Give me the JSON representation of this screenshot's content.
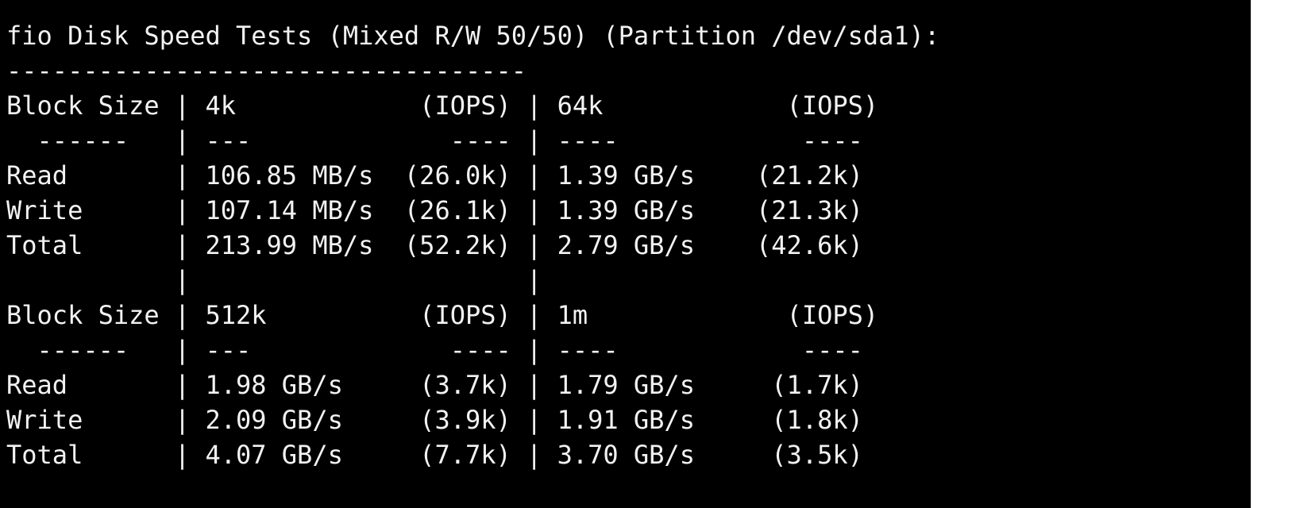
{
  "terminal": {
    "lines": [
      "fio Disk Speed Tests (Mixed R/W 50/50) (Partition /dev/sda1):",
      "----------------------------------",
      "Block Size | 4k            (IOPS) | 64k            (IOPS)",
      "  ------   | ---             ---- | ----            ----",
      "Read       | 106.85 MB/s  (26.0k) | 1.39 GB/s    (21.2k)",
      "Write      | 107.14 MB/s  (26.1k) | 1.39 GB/s    (21.3k)",
      "Total      | 213.99 MB/s  (52.2k) | 2.79 GB/s    (42.6k)",
      "           |                      |",
      "Block Size | 512k          (IOPS) | 1m             (IOPS)",
      "  ------   | ---             ---- | ----            ----",
      "Read       | 1.98 GB/s     (3.7k) | 1.79 GB/s     (1.7k)",
      "Write      | 2.09 GB/s     (3.9k) | 1.91 GB/s     (1.8k)",
      "Total      | 4.07 GB/s     (7.7k) | 3.70 GB/s     (3.5k)"
    ]
  }
}
